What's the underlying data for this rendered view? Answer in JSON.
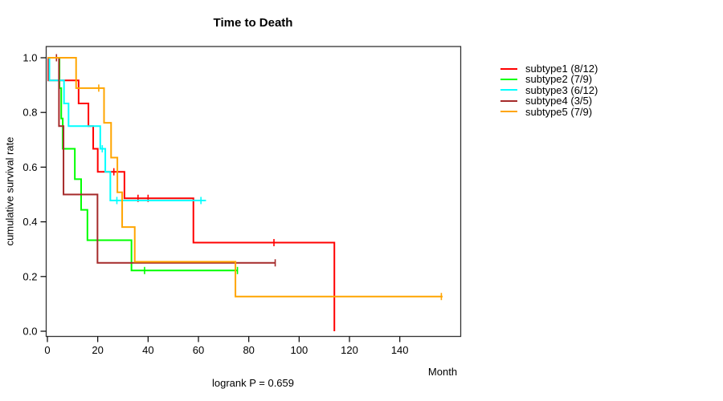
{
  "title": "Time to Death",
  "y_axis": {
    "label": "cumulative survival rate",
    "ticks": [
      {
        "value": 0.0,
        "label": "0.0"
      },
      {
        "value": 0.2,
        "label": "0.2"
      },
      {
        "value": 0.4,
        "label": "0.4"
      },
      {
        "value": 0.6,
        "label": "0.6"
      },
      {
        "value": 0.8,
        "label": "0.8"
      },
      {
        "value": 1.0,
        "label": "1.0"
      }
    ]
  },
  "x_axis": {
    "label": "Month",
    "ticks": [
      {
        "value": 0,
        "label": "0"
      },
      {
        "value": 20,
        "label": "20"
      },
      {
        "value": 40,
        "label": "40"
      },
      {
        "value": 60,
        "label": "60"
      },
      {
        "value": 80,
        "label": "80"
      },
      {
        "value": 100,
        "label": "100"
      },
      {
        "value": 120,
        "label": "120"
      },
      {
        "value": 140,
        "label": "140"
      }
    ]
  },
  "footer": {
    "logrank_text": "logrank P = 0.659"
  },
  "legend": {
    "items": [
      {
        "label": "subtype1 (8/12)",
        "color": "#ff0000"
      },
      {
        "label": "subtype2 (7/9)",
        "color": "#00ff00"
      },
      {
        "label": "subtype3 (6/12)",
        "color": "#00ffff"
      },
      {
        "label": "subtype4 (3/5)",
        "color": "#a52a2a"
      },
      {
        "label": "subtype5 (7/9)",
        "color": "#ffa500"
      }
    ]
  },
  "chart_data": {
    "type": "line",
    "subtype": "kaplan-meier-step",
    "title": "Time to Death",
    "xlabel": "Month",
    "ylabel": "cumulative survival rate",
    "xlim": [
      0,
      164
    ],
    "ylim": [
      0,
      1.04
    ],
    "grid": false,
    "legend_position": "right-outside",
    "annotation": "logrank P = 0.659",
    "series": [
      {
        "name": "subtype1",
        "events_total": "8/12",
        "color": "#ff0000",
        "steps": [
          [
            0,
            1
          ],
          [
            0.4,
            0.917
          ],
          [
            12.4,
            0.833
          ],
          [
            16.3,
            0.75
          ],
          [
            18.2,
            0.667
          ],
          [
            20,
            0.583
          ],
          [
            30.6,
            0.486
          ],
          [
            58,
            0.324
          ],
          [
            114,
            0
          ]
        ],
        "end_t": 114,
        "censors": [
          [
            26.4,
            0.583
          ],
          [
            36,
            0.486
          ],
          [
            40,
            0.486
          ],
          [
            90,
            0.324
          ]
        ]
      },
      {
        "name": "subtype2",
        "events_total": "7/9",
        "color": "#00ff00",
        "steps": [
          [
            0,
            1
          ],
          [
            4.8,
            0.889
          ],
          [
            5.5,
            0.778
          ],
          [
            6.1,
            0.667
          ],
          [
            10.9,
            0.556
          ],
          [
            13.4,
            0.444
          ],
          [
            15.9,
            0.333
          ],
          [
            33.4,
            0.222
          ]
        ],
        "end_t": 75.5,
        "censors": [
          [
            38.6,
            0.222
          ],
          [
            75.5,
            0.222
          ]
        ]
      },
      {
        "name": "subtype3",
        "events_total": "6/12",
        "color": "#00ffff",
        "steps": [
          [
            0,
            1
          ],
          [
            0.8,
            0.917
          ],
          [
            6.6,
            0.833
          ],
          [
            8.4,
            0.75
          ],
          [
            21,
            0.667
          ],
          [
            23,
            0.583
          ],
          [
            25,
            0.478
          ]
        ],
        "end_t": 63,
        "censors": [
          [
            21.8,
            0.667
          ],
          [
            27.6,
            0.478
          ],
          [
            61,
            0.478
          ]
        ]
      },
      {
        "name": "subtype4",
        "events_total": "3/5",
        "color": "#a52a2a",
        "steps": [
          [
            0,
            1
          ],
          [
            4.6,
            0.75
          ],
          [
            6.4,
            0.5
          ],
          [
            19.9,
            0.25
          ]
        ],
        "end_t": 90.5,
        "censors": [
          [
            3.6,
            1
          ],
          [
            90.5,
            0.25
          ]
        ]
      },
      {
        "name": "subtype5",
        "events_total": "7/9",
        "color": "#ffa500",
        "steps": [
          [
            0,
            1
          ],
          [
            11.4,
            0.889
          ],
          [
            22.5,
            0.762
          ],
          [
            25.3,
            0.635
          ],
          [
            27.8,
            0.508
          ],
          [
            29.7,
            0.381
          ],
          [
            34.7,
            0.254
          ],
          [
            74.7,
            0.127
          ]
        ],
        "end_t": 157,
        "censors": [
          [
            20.4,
            0.889
          ],
          [
            156.5,
            0.127
          ]
        ]
      }
    ]
  }
}
